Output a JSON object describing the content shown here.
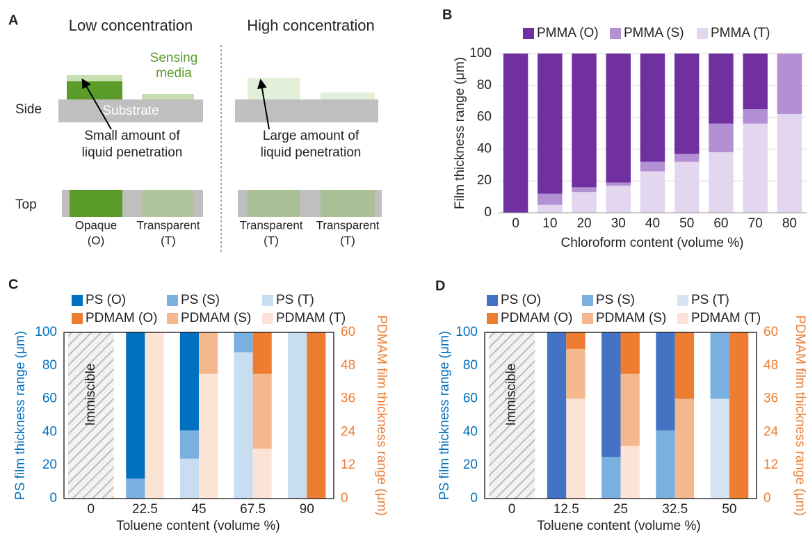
{
  "diagram": {
    "label": "A",
    "side": "Side",
    "top": "Top",
    "substrate": "Substrate",
    "sensing_media": [
      "Sensing",
      "media"
    ],
    "low": {
      "title": "Low concentration",
      "annotation": [
        "Small amount of",
        "liquid penetration"
      ],
      "top_labels": [
        [
          "Opaque",
          "(O)"
        ],
        [
          "Transparent",
          "(T)"
        ]
      ]
    },
    "high": {
      "title": "High concentration",
      "annotation": [
        "Large amount of",
        "liquid penetration"
      ],
      "top_labels": [
        [
          "Transparent",
          "(T)"
        ],
        [
          "Transparent",
          "(T)"
        ]
      ]
    }
  },
  "chart_data": [
    {
      "type": "bar",
      "stacked": true,
      "panel": "B",
      "categories": [
        "0",
        "10",
        "20",
        "30",
        "40",
        "50",
        "60",
        "70",
        "80"
      ],
      "series": [
        {
          "name": "PMMA (O)",
          "color": "#7030a0",
          "values": [
            100,
            88,
            84,
            81,
            68,
            63,
            44,
            35,
            0
          ]
        },
        {
          "name": "PMMA (S)",
          "color": "#b38fd3",
          "values": [
            0,
            7,
            3,
            2,
            6,
            5,
            18,
            9,
            38
          ]
        },
        {
          "name": "PMMA (T)",
          "color": "#e2d7ee",
          "values": [
            0,
            5,
            13,
            17,
            26,
            32,
            38,
            56,
            62
          ]
        }
      ],
      "ylim": [
        0,
        100
      ],
      "yticks": [
        0,
        20,
        40,
        60,
        80,
        100
      ],
      "grid": true,
      "ylabel": "Film thickness range (μm)",
      "xlabel": "Chloroform content (volume %)"
    },
    {
      "type": "bar",
      "stacked": true,
      "panel": "C",
      "categories": [
        "0",
        "22.5",
        "45",
        "67.5",
        "90"
      ],
      "series": [
        {
          "name": "PS (O)",
          "color": "#0070c0",
          "values": [
            null,
            88,
            59,
            0,
            0
          ]
        },
        {
          "name": "PS (S)",
          "color": "#7ab0e0",
          "values": [
            null,
            12,
            17,
            12,
            0
          ]
        },
        {
          "name": "PS (T)",
          "color": "#c9ddf1",
          "values": [
            null,
            0,
            24,
            88,
            100
          ]
        },
        {
          "name": "PDMAM (O)",
          "color": "#ed7d31",
          "axis": "y2",
          "values": [
            null,
            0,
            0,
            15,
            60
          ]
        },
        {
          "name": "PDMAM (S)",
          "color": "#f5b88e",
          "axis": "y2",
          "values": [
            null,
            0,
            15,
            27,
            0
          ]
        },
        {
          "name": "PDMAM (T)",
          "color": "#fbe3d5",
          "axis": "y2",
          "values": [
            null,
            60,
            45,
            18,
            0
          ]
        }
      ],
      "ylim": [
        0,
        100
      ],
      "yticks": [
        0,
        20,
        40,
        60,
        80,
        100
      ],
      "y2lim": [
        0,
        60
      ],
      "y2ticks": [
        0,
        12,
        24,
        36,
        48,
        60
      ],
      "grid": false,
      "y_color": "#0070c0",
      "y2_color": "#ed7d31",
      "ylabel": "PS film thickness range (μm)",
      "y2label": "PDMAM film thickness range (μm)",
      "xlabel": "Toluene content (volume %)",
      "annotations": [
        "Immiscible"
      ]
    },
    {
      "type": "bar",
      "stacked": true,
      "panel": "D",
      "categories": [
        "0",
        "12.5",
        "25",
        "32.5",
        "50"
      ],
      "series": [
        {
          "name": "PS (O)",
          "color": "#4472c4",
          "values": [
            null,
            100,
            75,
            59,
            0
          ]
        },
        {
          "name": "PS (S)",
          "color": "#7ab0e0",
          "values": [
            null,
            0,
            25,
            41,
            40
          ]
        },
        {
          "name": "PS (T)",
          "color": "#d6e4f4",
          "values": [
            null,
            0,
            0,
            0,
            60
          ]
        },
        {
          "name": "PDMAM (O)",
          "color": "#ed7d31",
          "axis": "y2",
          "values": [
            null,
            6,
            15,
            24,
            60
          ]
        },
        {
          "name": "PDMAM (S)",
          "color": "#f5b88e",
          "axis": "y2",
          "values": [
            null,
            18,
            26,
            36,
            0
          ]
        },
        {
          "name": "PDMAM (T)",
          "color": "#fbe3d5",
          "axis": "y2",
          "values": [
            null,
            36,
            19,
            0,
            0
          ]
        }
      ],
      "ylim": [
        0,
        100
      ],
      "yticks": [
        0,
        20,
        40,
        60,
        80,
        100
      ],
      "y2lim": [
        0,
        60
      ],
      "y2ticks": [
        0,
        12,
        24,
        36,
        48,
        60
      ],
      "grid": false,
      "y_color": "#0070c0",
      "y2_color": "#ed7d31",
      "ylabel": "PS film thickness range (μm)",
      "y2label": "PDMAM film thickness range (μm)",
      "xlabel": "Toluene content (volume %)",
      "annotations": [
        "Immiscible"
      ]
    }
  ]
}
